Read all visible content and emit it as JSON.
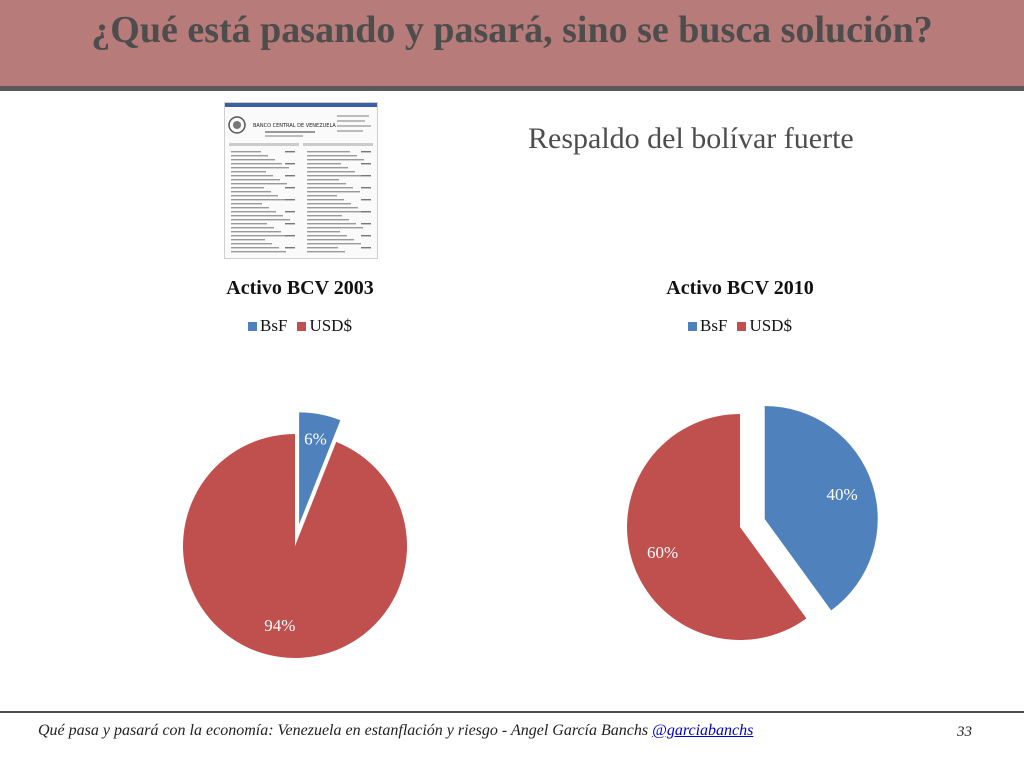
{
  "slide": {
    "title": "¿Qué está pasando y pasará, sino se busca solución?",
    "subtitle": "Respaldo del bolívar fuerte",
    "footer_text": "Qué pasa y pasará con la economía: Venezuela en estanflación y riesgo - Angel García Banchs ",
    "footer_link": "@garciabanchs",
    "page_number": "33"
  },
  "colors": {
    "header": "#b77b79",
    "bsf": "#4f81bd",
    "usd": "#c0504d"
  },
  "thumbnail": {
    "icon": "bcv-balance-sheet-document",
    "heading": "BANCO CENTRAL DE VENEZUELA"
  },
  "chart_data": [
    {
      "type": "pie",
      "title": "Activo BCV 2003",
      "legend": [
        "BsF",
        "USD$"
      ],
      "legend_position": "top",
      "slices": [
        {
          "label": "BsF",
          "value": 6,
          "data_label": "6%",
          "exploded": true
        },
        {
          "label": "USD$",
          "value": 94,
          "data_label": "94%",
          "exploded": false
        }
      ]
    },
    {
      "type": "pie",
      "title": "Activo BCV 2010",
      "legend": [
        "BsF",
        "USD$"
      ],
      "legend_position": "top",
      "slices": [
        {
          "label": "BsF",
          "value": 40,
          "data_label": "40%",
          "exploded": true
        },
        {
          "label": "USD$",
          "value": 60,
          "data_label": "60%",
          "exploded": false
        }
      ]
    }
  ]
}
